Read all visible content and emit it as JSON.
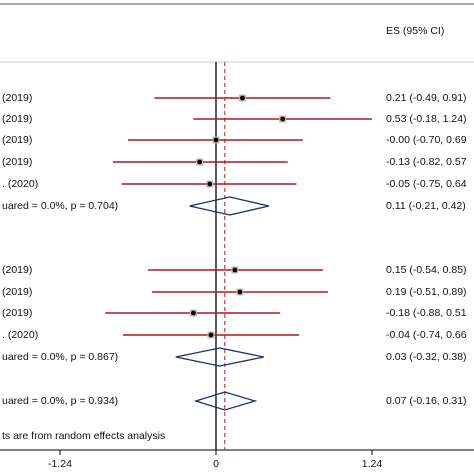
{
  "chart_data": {
    "type": "forest",
    "header": "ES (95% CI)",
    "xlim": [
      -1.717,
      2.051
    ],
    "xticks": [
      -1.24,
      0,
      1.24
    ],
    "ci_color": "#b3171b",
    "diamond_color": "#1b2f6e",
    "groups": [
      {
        "studies": [
          {
            "label": "(2019)",
            "es": 0.21,
            "lo": -0.49,
            "hi": 0.91,
            "ci_text": "0.21 (-0.49, 0.91)"
          },
          {
            "label": "(2019)",
            "es": 0.53,
            "lo": -0.18,
            "hi": 1.24,
            "ci_text": "0.53 (-0.18, 1.24)"
          },
          {
            "label": "(2019)",
            "es": -0.0,
            "lo": -0.7,
            "hi": 0.69,
            "ci_text": "-0.00 (-0.70, 0.69"
          },
          {
            "label": "(2019)",
            "es": -0.13,
            "lo": -0.82,
            "hi": 0.57,
            "ci_text": "-0.13 (-0.82, 0.57"
          },
          {
            "label": ". (2020)",
            "es": -0.05,
            "lo": -0.75,
            "hi": 0.64,
            "ci_text": "-0.05 (-0.75, 0.64"
          }
        ],
        "subtotal": {
          "label": "uared = 0.0%, p = 0.704)",
          "es": 0.11,
          "lo": -0.21,
          "hi": 0.42,
          "ci_text": "0.11 (-0.21, 0.42)"
        }
      },
      {
        "studies": [
          {
            "label": "(2019)",
            "es": 0.15,
            "lo": -0.54,
            "hi": 0.85,
            "ci_text": "0.15 (-0.54, 0.85)"
          },
          {
            "label": "(2019)",
            "es": 0.19,
            "lo": -0.51,
            "hi": 0.89,
            "ci_text": "0.19 (-0.51, 0.89)"
          },
          {
            "label": "(2019)",
            "es": -0.18,
            "lo": -0.88,
            "hi": 0.51,
            "ci_text": "-0.18 (-0.88, 0.51"
          },
          {
            "label": ". (2020)",
            "es": -0.04,
            "lo": -0.74,
            "hi": 0.66,
            "ci_text": "-0.04 (-0.74, 0.66"
          }
        ],
        "subtotal": {
          "label": "uared = 0.0%, p = 0.867)",
          "es": 0.03,
          "lo": -0.32,
          "hi": 0.38,
          "ci_text": "0.03 (-0.32, 0.38)"
        }
      }
    ],
    "overall": {
      "label": "uared = 0.0%, p = 0.934)",
      "es": 0.07,
      "lo": -0.16,
      "hi": 0.31,
      "ci_text": "0.07 (-0.16, 0.31)"
    },
    "footnote": "ts are from random effects analysis"
  }
}
